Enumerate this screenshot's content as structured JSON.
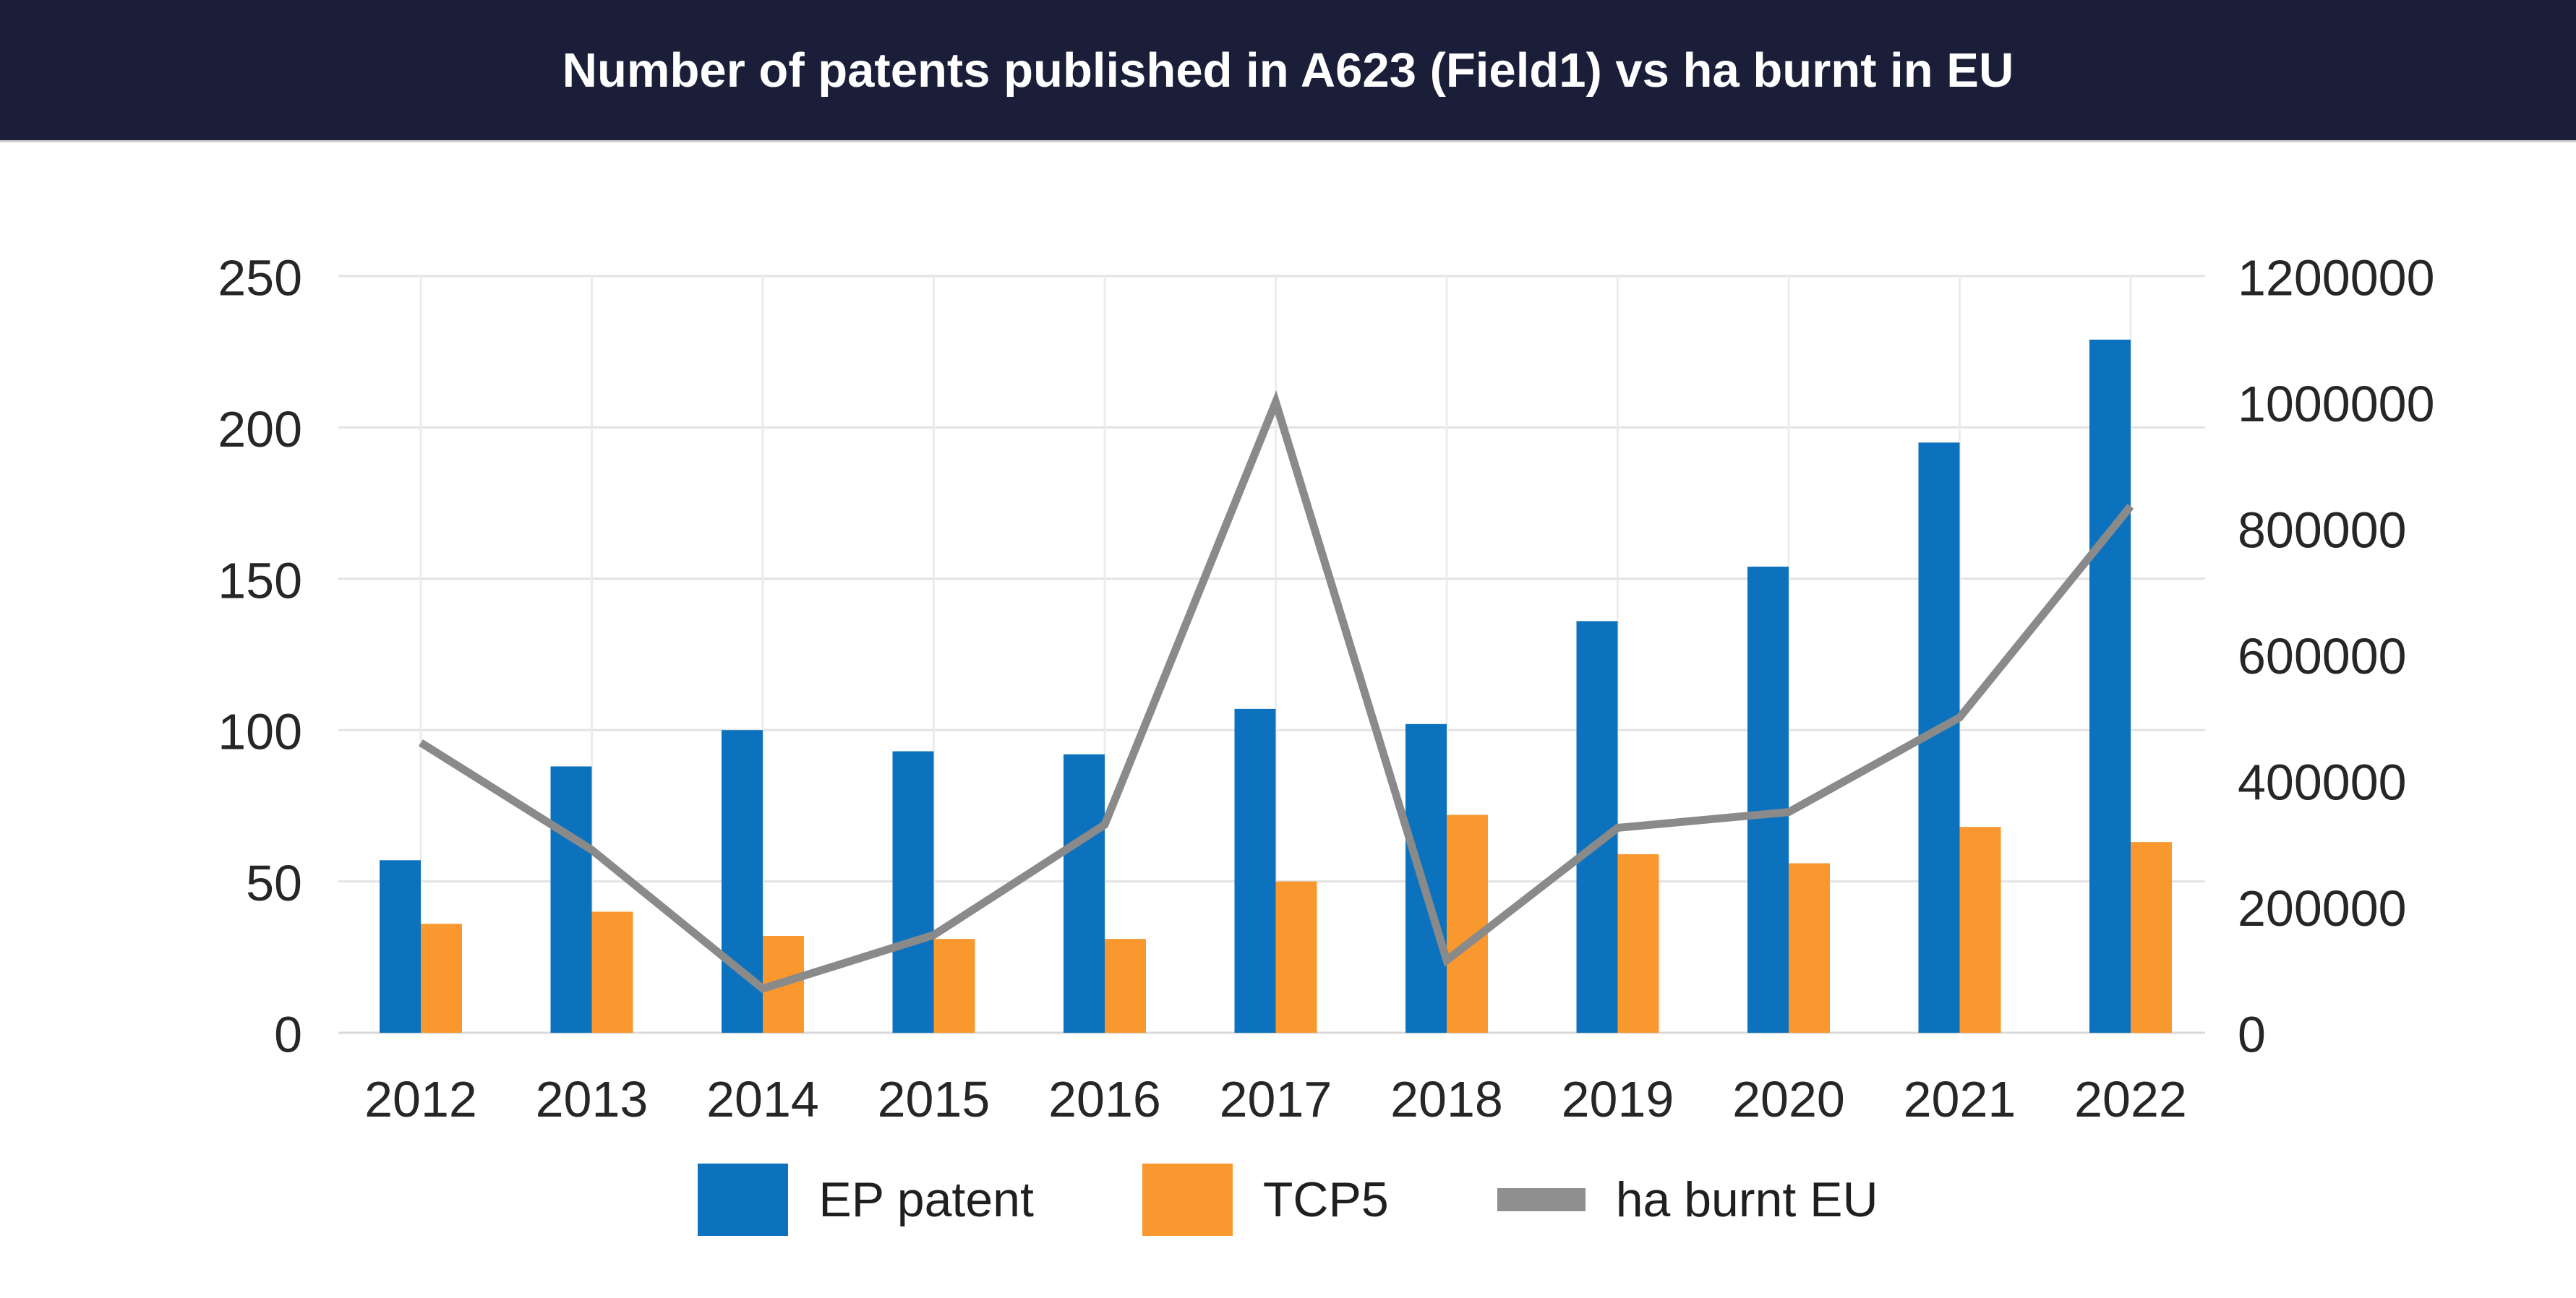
{
  "header": {
    "title": "Number of patents published in A623 (Field1) vs ha burnt in EU",
    "bg_color": "#1a1e38",
    "text_color": "#ffffff"
  },
  "chart_data": {
    "type": "combo",
    "title": "Number of patents published in A623 (Field1) vs ha burnt in EU",
    "categories": [
      "2012",
      "2013",
      "2014",
      "2015",
      "2016",
      "2017",
      "2018",
      "2019",
      "2020",
      "2021",
      "2022"
    ],
    "series": [
      {
        "name": "EP patent",
        "type": "bar",
        "axis": "left",
        "color": "#0d72bd",
        "values": [
          57,
          88,
          100,
          93,
          92,
          107,
          102,
          136,
          154,
          195,
          229
        ]
      },
      {
        "name": "TCP5",
        "type": "bar",
        "axis": "left",
        "color": "#f8982f",
        "values": [
          36,
          40,
          32,
          31,
          31,
          50,
          72,
          59,
          56,
          68,
          63
        ]
      },
      {
        "name": "ha burnt EU",
        "type": "line",
        "axis": "right",
        "color": "#8a8a8a",
        "values": [
          460000,
          290000,
          70000,
          155000,
          330000,
          1000000,
          115000,
          325000,
          350000,
          500000,
          835000
        ]
      }
    ],
    "left_axis": {
      "ticks": [
        "0",
        "50",
        "100",
        "150",
        "200",
        "250"
      ],
      "min": 0,
      "max": 250
    },
    "right_axis": {
      "ticks": [
        "0",
        "200000",
        "400000",
        "600000",
        "800000",
        "1000000",
        "1200000"
      ],
      "min": 0,
      "max": 1200000
    },
    "grid": true,
    "legend_position": "bottom",
    "colors": {
      "grid_h": "#e3e3e3",
      "grid_v": "#ececec",
      "axis_line": "#d9d9d9",
      "tick_label": "#262626"
    }
  },
  "legend": {
    "items": [
      {
        "label": "EP patent",
        "color": "#0d72bd",
        "shape": "rect"
      },
      {
        "label": "TCP5",
        "color": "#f8982f",
        "shape": "rect"
      },
      {
        "label": "ha burnt EU",
        "color": "#8f8f8f",
        "shape": "line"
      }
    ]
  }
}
